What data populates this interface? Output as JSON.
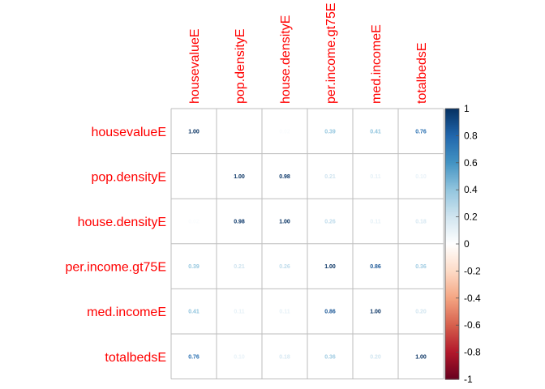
{
  "chart_data": {
    "type": "heatmap",
    "variables": [
      "housevalueE",
      "pop.densityE",
      "house.densityE",
      "per.income.gt75E",
      "med.incomeE",
      "totalbedsE"
    ],
    "matrix": [
      [
        1.0,
        0.0,
        0.02,
        0.39,
        0.41,
        0.76
      ],
      [
        0.0,
        1.0,
        0.98,
        0.21,
        0.11,
        0.1
      ],
      [
        0.02,
        0.98,
        1.0,
        0.26,
        0.11,
        0.18
      ],
      [
        0.39,
        0.21,
        0.26,
        1.0,
        0.86,
        0.36
      ],
      [
        0.41,
        0.11,
        0.11,
        0.86,
        1.0,
        0.2
      ],
      [
        0.76,
        0.1,
        0.18,
        0.36,
        0.2,
        1.0
      ]
    ],
    "cell_labels": [
      [
        "1.00",
        "0.00",
        "0.02",
        "0.39",
        "0.41",
        "0.76"
      ],
      [
        "0.00",
        "1.00",
        "0.98",
        "0.21",
        "0.11",
        "0.10"
      ],
      [
        "0.02",
        "0.98",
        "1.00",
        "0.26",
        "0.11",
        "0.18"
      ],
      [
        "0.39",
        "0.21",
        "0.26",
        "1.00",
        "0.86",
        "0.36"
      ],
      [
        "0.41",
        "0.11",
        "0.11",
        "0.86",
        "1.00",
        "0.20"
      ],
      [
        "0.76",
        "0.10",
        "0.18",
        "0.36",
        "0.20",
        "1.00"
      ]
    ],
    "colorbar": {
      "range": [
        -1,
        1
      ],
      "ticks": [
        "1",
        "0.8",
        "0.6",
        "0.4",
        "0.2",
        "0",
        "-0.2",
        "-0.4",
        "-0.6",
        "-0.8",
        "-1"
      ],
      "tick_values": [
        1,
        0.8,
        0.6,
        0.4,
        0.2,
        0,
        -0.2,
        -0.4,
        -0.6,
        -0.8,
        -1
      ],
      "colors": [
        "#67001F",
        "#B2182B",
        "#D6604D",
        "#F4A582",
        "#FDDBC7",
        "#FFFFFF",
        "#D1E5F0",
        "#92C5DE",
        "#4393C3",
        "#2166AC",
        "#053061"
      ]
    },
    "label_color": "#FF0000",
    "grid_color": "#BEBEBE",
    "grid": true
  }
}
